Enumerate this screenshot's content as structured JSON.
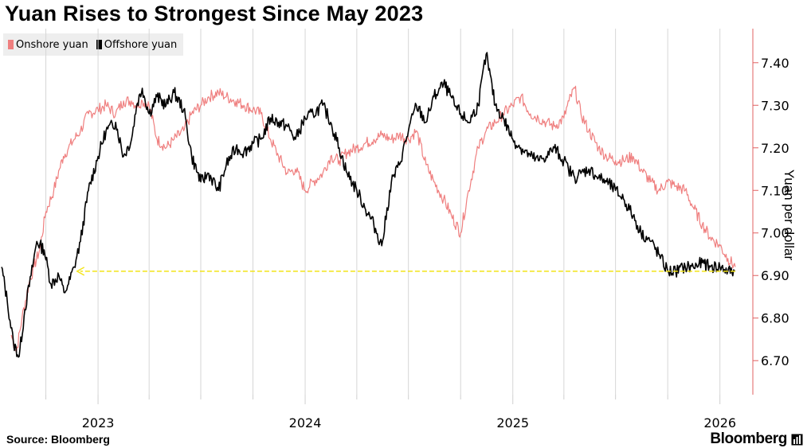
{
  "title": "Yuan Rises to Strongest Since May 2023",
  "source": "Source: Bloomberg",
  "brand": "Bloomberg",
  "brand_icon": "chart-box-icon",
  "colors": {
    "onshore": "#ef7f7f",
    "offshore": "#000000",
    "arrow": "#f2e418",
    "axis": "#e06060",
    "grid": "#d6d6d6"
  },
  "chart_data": {
    "type": "line",
    "title": "Yuan Rises to Strongest Since May 2023",
    "xlabel": "",
    "ylabel": "Yuan per dollar",
    "legend": "top-left",
    "grid": true,
    "xlim": [
      "2022-07-15",
      "2026-02-28"
    ],
    "ylim": [
      6.62,
      7.48
    ],
    "x_ticks": [
      "2023",
      "2024",
      "2025",
      "2026"
    ],
    "y_ticks": [
      6.7,
      6.8,
      6.9,
      7.0,
      7.1,
      7.2,
      7.3,
      7.4
    ],
    "y_tick_labels": [
      "6.70",
      "6.80",
      "6.90",
      "7.00",
      "7.10",
      "7.20",
      "7.30",
      "7.40"
    ],
    "series": [
      {
        "name": "Onshore yuan",
        "color": "#ef7f7f",
        "x": [
          "2022-08-01",
          "2022-08-10",
          "2022-08-20",
          "2022-09-01",
          "2022-09-10",
          "2022-09-20",
          "2022-10-01",
          "2022-10-15",
          "2022-10-25",
          "2022-11-01",
          "2022-11-10",
          "2022-11-20",
          "2022-12-01",
          "2022-12-15",
          "2023-01-01",
          "2023-01-15",
          "2023-02-01",
          "2023-02-15",
          "2023-03-01",
          "2023-03-10",
          "2023-03-20",
          "2023-04-01",
          "2023-04-15",
          "2023-05-01",
          "2023-05-15",
          "2023-06-01",
          "2023-06-15",
          "2023-07-01",
          "2023-07-15",
          "2023-08-01",
          "2023-08-15",
          "2023-09-01",
          "2023-09-15",
          "2023-10-01",
          "2023-10-15",
          "2023-11-01",
          "2023-11-15",
          "2023-12-01",
          "2023-12-15",
          "2024-01-01",
          "2024-01-15",
          "2024-02-01",
          "2024-02-15",
          "2024-03-01",
          "2024-03-15",
          "2024-04-01",
          "2024-04-15",
          "2024-05-01",
          "2024-05-15",
          "2024-06-01",
          "2024-06-15",
          "2024-07-01",
          "2024-07-15",
          "2024-08-01",
          "2024-08-15",
          "2024-09-01",
          "2024-09-15",
          "2024-10-01",
          "2024-10-15",
          "2024-11-01",
          "2024-11-15",
          "2024-12-01",
          "2024-12-15",
          "2025-01-01",
          "2025-01-15",
          "2025-02-01",
          "2025-02-15",
          "2025-03-01",
          "2025-03-15",
          "2025-04-01",
          "2025-04-10",
          "2025-04-20",
          "2025-05-01",
          "2025-05-15",
          "2025-06-01",
          "2025-06-15",
          "2025-07-01",
          "2025-07-15",
          "2025-08-01",
          "2025-08-15",
          "2025-09-01",
          "2025-09-15",
          "2025-10-01",
          "2025-10-15",
          "2025-11-01",
          "2025-11-15",
          "2025-12-01",
          "2025-12-15",
          "2026-01-01",
          "2026-01-15",
          "2026-01-28"
        ],
        "values": [
          6.76,
          6.72,
          6.8,
          6.88,
          6.92,
          6.96,
          7.05,
          7.1,
          7.15,
          7.18,
          7.2,
          7.22,
          7.24,
          7.28,
          7.29,
          7.3,
          7.28,
          7.31,
          7.31,
          7.3,
          7.31,
          7.3,
          7.22,
          7.2,
          7.22,
          7.24,
          7.28,
          7.3,
          7.32,
          7.33,
          7.32,
          7.31,
          7.3,
          7.29,
          7.28,
          7.22,
          7.18,
          7.14,
          7.15,
          7.1,
          7.12,
          7.14,
          7.18,
          7.17,
          7.19,
          7.2,
          7.21,
          7.22,
          7.23,
          7.22,
          7.23,
          7.22,
          7.24,
          7.16,
          7.12,
          7.08,
          7.04,
          7.0,
          7.1,
          7.2,
          7.24,
          7.26,
          7.28,
          7.3,
          7.32,
          7.28,
          7.27,
          7.26,
          7.25,
          7.27,
          7.31,
          7.34,
          7.28,
          7.24,
          7.2,
          7.18,
          7.17,
          7.17,
          7.18,
          7.15,
          7.12,
          7.1,
          7.12,
          7.11,
          7.1,
          7.06,
          7.02,
          6.99,
          6.97,
          6.94,
          6.92
        ]
      },
      {
        "name": "Offshore yuan",
        "color": "#000000",
        "x": [
          "2022-07-15",
          "2022-07-25",
          "2022-08-05",
          "2022-08-15",
          "2022-08-25",
          "2022-09-05",
          "2022-09-15",
          "2022-09-28",
          "2022-10-10",
          "2022-10-24",
          "2022-11-02",
          "2022-11-10",
          "2022-11-20",
          "2022-12-01",
          "2022-12-15",
          "2023-01-01",
          "2023-01-15",
          "2023-02-01",
          "2023-02-15",
          "2023-03-01",
          "2023-03-10",
          "2023-03-20",
          "2023-04-01",
          "2023-04-15",
          "2023-05-01",
          "2023-05-15",
          "2023-06-01",
          "2023-06-15",
          "2023-07-01",
          "2023-07-15",
          "2023-08-01",
          "2023-08-15",
          "2023-09-01",
          "2023-09-15",
          "2023-10-01",
          "2023-10-15",
          "2023-11-01",
          "2023-11-15",
          "2023-12-01",
          "2023-12-15",
          "2024-01-01",
          "2024-01-15",
          "2024-02-01",
          "2024-02-15",
          "2024-03-01",
          "2024-03-15",
          "2024-04-01",
          "2024-04-15",
          "2024-05-01",
          "2024-05-15",
          "2024-06-01",
          "2024-06-15",
          "2024-07-01",
          "2024-07-15",
          "2024-08-01",
          "2024-08-15",
          "2024-09-01",
          "2024-09-10",
          "2024-09-20",
          "2024-10-01",
          "2024-10-15",
          "2024-11-01",
          "2024-11-15",
          "2024-12-01",
          "2024-12-15",
          "2025-01-01",
          "2025-01-15",
          "2025-02-01",
          "2025-02-15",
          "2025-03-01",
          "2025-03-15",
          "2025-04-01",
          "2025-04-09",
          "2025-04-20",
          "2025-05-01",
          "2025-05-15",
          "2025-06-01",
          "2025-06-15",
          "2025-07-01",
          "2025-07-15",
          "2025-08-01",
          "2025-08-15",
          "2025-09-01",
          "2025-09-15",
          "2025-10-01",
          "2025-10-15",
          "2025-11-01",
          "2025-11-15",
          "2025-12-01",
          "2025-12-15",
          "2026-01-01",
          "2026-01-15",
          "2026-01-28"
        ],
        "values": [
          6.92,
          6.84,
          6.74,
          6.71,
          6.82,
          6.9,
          6.98,
          6.96,
          6.88,
          6.9,
          6.86,
          6.88,
          6.92,
          6.98,
          7.1,
          7.18,
          7.24,
          7.26,
          7.18,
          7.22,
          7.3,
          7.34,
          7.28,
          7.32,
          7.3,
          7.33,
          7.29,
          7.18,
          7.12,
          7.14,
          7.1,
          7.16,
          7.2,
          7.19,
          7.21,
          7.22,
          7.27,
          7.26,
          7.25,
          7.22,
          7.27,
          7.28,
          7.3,
          7.26,
          7.2,
          7.14,
          7.1,
          7.06,
          7.02,
          6.97,
          7.12,
          7.16,
          7.24,
          7.3,
          7.26,
          7.32,
          7.35,
          7.33,
          7.3,
          7.28,
          7.26,
          7.3,
          7.42,
          7.3,
          7.27,
          7.22,
          7.2,
          7.18,
          7.17,
          7.18,
          7.2,
          7.17,
          7.15,
          7.13,
          7.14,
          7.15,
          7.13,
          7.12,
          7.1,
          7.08,
          7.04,
          7.0,
          6.98,
          6.95,
          6.91,
          6.91,
          6.92,
          6.92,
          6.93,
          6.92,
          6.92,
          6.91,
          6.91
        ]
      }
    ],
    "annotations": [
      {
        "type": "arrow",
        "y": 6.91,
        "x_from": "2026-01-28",
        "x_to": "2022-11-25",
        "color": "#f2e418"
      }
    ]
  }
}
